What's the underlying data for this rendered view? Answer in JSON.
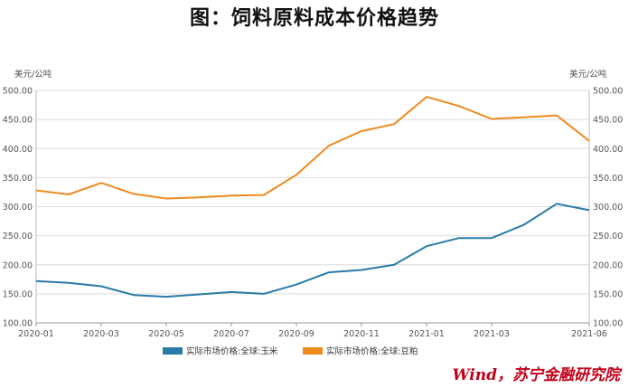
{
  "title": "图：饲料原料成本价格趋势",
  "source": "Wind，苏宁金融研究院",
  "chart_data": {
    "type": "line",
    "y_unit_left": "美元/公吨",
    "y_unit_right": "美元/公吨",
    "ylim": [
      100,
      500
    ],
    "yticks": [
      "100.00",
      "150.00",
      "200.00",
      "250.00",
      "300.00",
      "350.00",
      "400.00",
      "450.00",
      "500.00"
    ],
    "x": [
      "2020-01",
      "2020-02",
      "2020-03",
      "2020-04",
      "2020-05",
      "2020-06",
      "2020-07",
      "2020-08",
      "2020-09",
      "2020-10",
      "2020-11",
      "2020-12",
      "2021-01",
      "2021-02",
      "2021-03",
      "2021-04",
      "2021-05",
      "2021-06"
    ],
    "xtick_labels": [
      "2020-01",
      "2020-03",
      "2020-05",
      "2020-07",
      "2020-09",
      "2020-11",
      "2021-01",
      "2021-03",
      "2021-06"
    ],
    "grid": true,
    "legend_position": "bottom",
    "series": [
      {
        "name": "实际市场价格:全球:玉米",
        "color": "#2a7aa8",
        "values": [
          172,
          169,
          163,
          148,
          145,
          149,
          153,
          150,
          166,
          187,
          191,
          200,
          232,
          246,
          246,
          269,
          305,
          294
        ]
      },
      {
        "name": "实际市场价格:全球:豆粕",
        "color": "#ef8a1e",
        "values": [
          328,
          321,
          341,
          322,
          314,
          316,
          319,
          320,
          355,
          405,
          430,
          442,
          489,
          473,
          451,
          454,
          457,
          413
        ]
      }
    ]
  }
}
